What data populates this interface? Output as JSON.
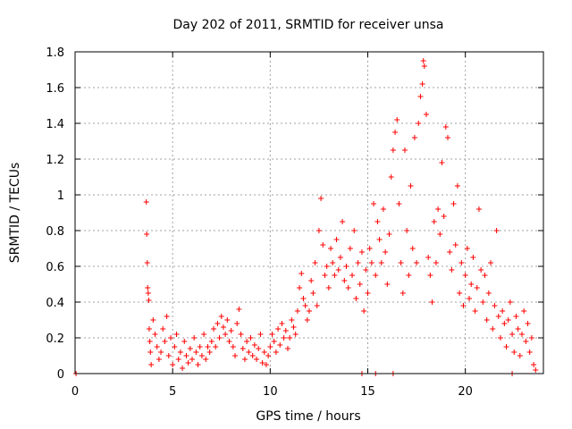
{
  "chart_data": {
    "type": "scatter",
    "title": "Day 202 of 2011, SRMTID for receiver unsa",
    "xlabel": "GPS time / hours",
    "ylabel": "SRMTID / TECUs",
    "xlim": [
      0,
      24
    ],
    "ylim": [
      0,
      1.8
    ],
    "xticks": [
      0,
      5,
      10,
      15,
      20
    ],
    "yticks": [
      0,
      0.2,
      0.4,
      0.6,
      0.8,
      1,
      1.2,
      1.4,
      1.6,
      1.8
    ],
    "xtick_labels": [
      "0",
      "5",
      "10",
      "15",
      "20"
    ],
    "ytick_labels": [
      "0",
      "0.2",
      "0.4",
      "0.6",
      "0.8",
      "1",
      "1.2",
      "1.4",
      "1.6",
      "1.8"
    ],
    "grid": true,
    "marker": "+",
    "color": "#ff0000",
    "series": [
      {
        "name": "SRMTID",
        "points": [
          [
            3.65,
            0.96
          ],
          [
            3.67,
            0.78
          ],
          [
            3.7,
            0.62
          ],
          [
            3.72,
            0.48
          ],
          [
            3.75,
            0.45
          ],
          [
            3.78,
            0.41
          ],
          [
            3.8,
            0.25
          ],
          [
            3.83,
            0.18
          ],
          [
            3.86,
            0.12
          ],
          [
            3.9,
            0.05
          ],
          [
            4.0,
            0.3
          ],
          [
            4.1,
            0.22
          ],
          [
            4.2,
            0.15
          ],
          [
            4.3,
            0.08
          ],
          [
            4.4,
            0.12
          ],
          [
            4.5,
            0.25
          ],
          [
            4.6,
            0.18
          ],
          [
            4.7,
            0.32
          ],
          [
            4.8,
            0.1
          ],
          [
            4.9,
            0.2
          ],
          [
            5.0,
            0.05
          ],
          [
            5.1,
            0.15
          ],
          [
            5.2,
            0.22
          ],
          [
            5.3,
            0.08
          ],
          [
            5.4,
            0.12
          ],
          [
            5.5,
            0.03
          ],
          [
            5.6,
            0.18
          ],
          [
            5.7,
            0.1
          ],
          [
            5.8,
            0.06
          ],
          [
            5.9,
            0.14
          ],
          [
            6.0,
            0.08
          ],
          [
            6.1,
            0.2
          ],
          [
            6.2,
            0.12
          ],
          [
            6.3,
            0.05
          ],
          [
            6.4,
            0.15
          ],
          [
            6.5,
            0.1
          ],
          [
            6.6,
            0.22
          ],
          [
            6.7,
            0.08
          ],
          [
            6.8,
            0.15
          ],
          [
            6.9,
            0.12
          ],
          [
            7.0,
            0.18
          ],
          [
            7.1,
            0.25
          ],
          [
            7.2,
            0.15
          ],
          [
            7.3,
            0.28
          ],
          [
            7.4,
            0.2
          ],
          [
            7.5,
            0.32
          ],
          [
            7.6,
            0.26
          ],
          [
            7.7,
            0.22
          ],
          [
            7.8,
            0.3
          ],
          [
            7.9,
            0.18
          ],
          [
            8.0,
            0.24
          ],
          [
            8.1,
            0.15
          ],
          [
            8.2,
            0.1
          ],
          [
            8.3,
            0.28
          ],
          [
            8.4,
            0.36
          ],
          [
            8.5,
            0.22
          ],
          [
            8.6,
            0.14
          ],
          [
            8.7,
            0.08
          ],
          [
            8.8,
            0.18
          ],
          [
            8.9,
            0.12
          ],
          [
            9.0,
            0.2
          ],
          [
            9.1,
            0.1
          ],
          [
            9.2,
            0.16
          ],
          [
            9.3,
            0.08
          ],
          [
            9.4,
            0.14
          ],
          [
            9.5,
            0.22
          ],
          [
            9.6,
            0.06
          ],
          [
            9.7,
            0.12
          ],
          [
            9.8,
            0.05
          ],
          [
            9.9,
            0.1
          ],
          [
            10.0,
            0.15
          ],
          [
            10.1,
            0.22
          ],
          [
            10.2,
            0.18
          ],
          [
            10.3,
            0.12
          ],
          [
            10.4,
            0.25
          ],
          [
            10.5,
            0.16
          ],
          [
            10.6,
            0.28
          ],
          [
            10.7,
            0.2
          ],
          [
            10.8,
            0.24
          ],
          [
            10.9,
            0.14
          ],
          [
            11.0,
            0.2
          ],
          [
            11.1,
            0.3
          ],
          [
            11.2,
            0.26
          ],
          [
            11.3,
            0.22
          ],
          [
            11.4,
            0.35
          ],
          [
            11.5,
            0.48
          ],
          [
            11.6,
            0.56
          ],
          [
            11.7,
            0.42
          ],
          [
            11.8,
            0.38
          ],
          [
            11.9,
            0.3
          ],
          [
            12.0,
            0.35
          ],
          [
            12.1,
            0.52
          ],
          [
            12.2,
            0.45
          ],
          [
            12.3,
            0.62
          ],
          [
            12.4,
            0.38
          ],
          [
            12.5,
            0.8
          ],
          [
            12.6,
            0.98
          ],
          [
            12.7,
            0.72
          ],
          [
            12.8,
            0.55
          ],
          [
            12.9,
            0.6
          ],
          [
            13.0,
            0.48
          ],
          [
            13.1,
            0.7
          ],
          [
            13.2,
            0.62
          ],
          [
            13.3,
            0.55
          ],
          [
            13.4,
            0.75
          ],
          [
            13.5,
            0.58
          ],
          [
            13.6,
            0.65
          ],
          [
            13.7,
            0.85
          ],
          [
            13.8,
            0.52
          ],
          [
            13.9,
            0.6
          ],
          [
            14.0,
            0.48
          ],
          [
            14.1,
            0.7
          ],
          [
            14.2,
            0.55
          ],
          [
            14.3,
            0.8
          ],
          [
            14.4,
            0.42
          ],
          [
            14.5,
            0.62
          ],
          [
            14.6,
            0.5
          ],
          [
            14.7,
            0.68
          ],
          [
            14.8,
            0.35
          ],
          [
            14.9,
            0.58
          ],
          [
            15.0,
            0.45
          ],
          [
            15.1,
            0.7
          ],
          [
            15.2,
            0.62
          ],
          [
            15.3,
            0.95
          ],
          [
            15.4,
            0.55
          ],
          [
            15.5,
            0.85
          ],
          [
            15.6,
            0.75
          ],
          [
            15.7,
            0.62
          ],
          [
            15.8,
            0.92
          ],
          [
            15.9,
            0.68
          ],
          [
            16.0,
            0.5
          ],
          [
            16.1,
            0.78
          ],
          [
            16.2,
            1.1
          ],
          [
            16.3,
            1.25
          ],
          [
            16.4,
            1.35
          ],
          [
            16.5,
            1.42
          ],
          [
            16.6,
            0.95
          ],
          [
            16.7,
            0.62
          ],
          [
            16.8,
            0.45
          ],
          [
            16.9,
            1.25
          ],
          [
            17.0,
            0.8
          ],
          [
            17.1,
            0.55
          ],
          [
            17.2,
            1.05
          ],
          [
            17.3,
            0.7
          ],
          [
            17.4,
            1.32
          ],
          [
            17.5,
            0.62
          ],
          [
            17.6,
            1.4
          ],
          [
            17.7,
            1.55
          ],
          [
            17.8,
            1.62
          ],
          [
            17.85,
            1.75
          ],
          [
            17.9,
            1.72
          ],
          [
            18.0,
            1.45
          ],
          [
            18.1,
            0.65
          ],
          [
            18.2,
            0.55
          ],
          [
            18.3,
            0.4
          ],
          [
            18.4,
            0.85
          ],
          [
            18.5,
            0.62
          ],
          [
            18.6,
            0.92
          ],
          [
            18.7,
            0.78
          ],
          [
            18.8,
            1.18
          ],
          [
            18.9,
            0.88
          ],
          [
            19.0,
            1.38
          ],
          [
            19.1,
            1.32
          ],
          [
            19.2,
            0.68
          ],
          [
            19.3,
            0.58
          ],
          [
            19.4,
            0.95
          ],
          [
            19.5,
            0.72
          ],
          [
            19.6,
            1.05
          ],
          [
            19.7,
            0.45
          ],
          [
            19.8,
            0.62
          ],
          [
            19.9,
            0.38
          ],
          [
            20.0,
            0.55
          ],
          [
            20.1,
            0.7
          ],
          [
            20.2,
            0.42
          ],
          [
            20.3,
            0.5
          ],
          [
            20.4,
            0.65
          ],
          [
            20.5,
            0.35
          ],
          [
            20.6,
            0.48
          ],
          [
            20.7,
            0.92
          ],
          [
            20.8,
            0.58
          ],
          [
            20.9,
            0.4
          ],
          [
            21.0,
            0.55
          ],
          [
            21.1,
            0.3
          ],
          [
            21.2,
            0.45
          ],
          [
            21.3,
            0.62
          ],
          [
            21.4,
            0.25
          ],
          [
            21.5,
            0.38
          ],
          [
            21.6,
            0.8
          ],
          [
            21.7,
            0.32
          ],
          [
            21.8,
            0.2
          ],
          [
            21.9,
            0.35
          ],
          [
            22.0,
            0.28
          ],
          [
            22.1,
            0.15
          ],
          [
            22.2,
            0.3
          ],
          [
            22.3,
            0.4
          ],
          [
            22.4,
            0.22
          ],
          [
            22.5,
            0.12
          ],
          [
            22.6,
            0.32
          ],
          [
            22.7,
            0.25
          ],
          [
            22.8,
            0.1
          ],
          [
            22.9,
            0.22
          ],
          [
            23.0,
            0.35
          ],
          [
            23.1,
            0.18
          ],
          [
            23.2,
            0.28
          ],
          [
            23.3,
            0.12
          ],
          [
            23.4,
            0.2
          ],
          [
            23.5,
            0.05
          ],
          [
            23.6,
            0.02
          ],
          [
            0.05,
            0.0
          ],
          [
            14.7,
            0.0
          ],
          [
            15.4,
            0.0
          ],
          [
            16.3,
            0.0
          ],
          [
            22.4,
            0.0
          ]
        ]
      }
    ]
  }
}
